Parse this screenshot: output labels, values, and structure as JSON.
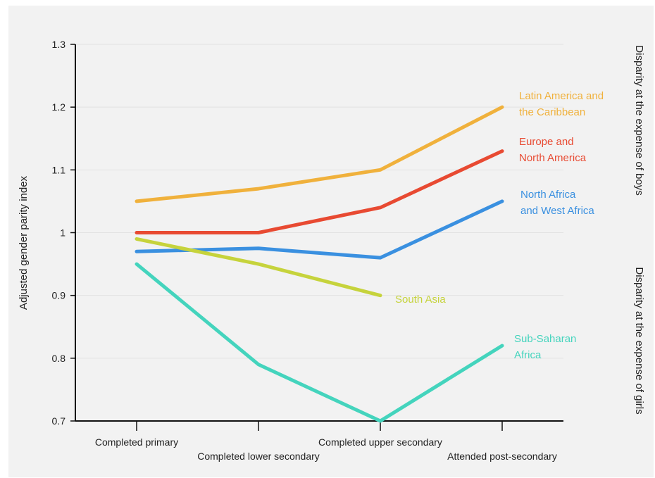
{
  "chart_data": {
    "type": "line",
    "ylabel": "Adjusted gender parity index",
    "ylim": [
      0.7,
      1.3
    ],
    "yticks": [
      "0.7",
      "0.8",
      "0.9",
      "1",
      "1.1",
      "1.2",
      "1.3"
    ],
    "grid": true,
    "categories": [
      "Completed primary",
      "Completed lower secondary",
      "Completed upper secondary",
      "Attended post-secondary"
    ],
    "side_notes": {
      "upper": "Disparity at the expense of boys",
      "lower": "Disparity at the expense of girls"
    },
    "series": [
      {
        "name": "Latin America and the Caribbean",
        "label_lines": [
          "Latin America and",
          "the Caribbean"
        ],
        "color": "#f0b13c",
        "values": [
          1.05,
          1.07,
          1.1,
          1.2
        ]
      },
      {
        "name": "Europe and North America",
        "label_lines": [
          "Europe and",
          "North America"
        ],
        "color": "#e84a32",
        "values": [
          1.0,
          1.0,
          1.04,
          1.13
        ]
      },
      {
        "name": "North Africa and West Africa",
        "label_lines": [
          "North Africa",
          "and West Africa"
        ],
        "color": "#3a90e0",
        "values": [
          0.97,
          0.975,
          0.96,
          1.05
        ]
      },
      {
        "name": "South Asia",
        "label_lines": [
          "South Asia"
        ],
        "color": "#c6d33c",
        "values": [
          0.99,
          0.95,
          0.9,
          null
        ]
      },
      {
        "name": "Sub-Saharan Africa",
        "label_lines": [
          "Sub-Saharan",
          "Africa"
        ],
        "color": "#44d4bd",
        "values": [
          0.95,
          0.79,
          0.7,
          0.82
        ]
      }
    ]
  }
}
